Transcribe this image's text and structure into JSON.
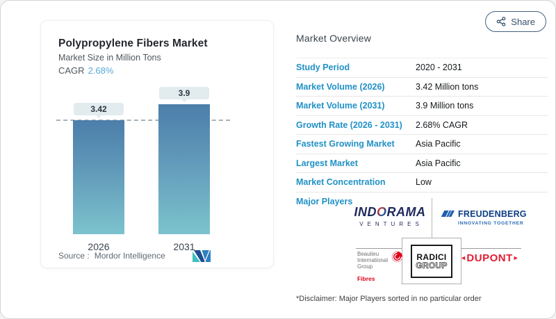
{
  "share": {
    "label": "Share",
    "icon": "share-nodes-icon"
  },
  "chart_card": {
    "title": "Polypropylene Fibers Market",
    "subtitle": "Market Size in Million Tons",
    "cagr_label": "CAGR",
    "cagr_value": "2.68%",
    "source_label": "Source :",
    "source_value": "Mordor Intelligence",
    "logo": "mordor-intelligence-logo"
  },
  "chart_data": {
    "type": "bar",
    "categories": [
      "2026",
      "2031"
    ],
    "values": [
      3.42,
      3.9
    ],
    "value_labels": [
      "3.42",
      "3.9"
    ],
    "title": "Polypropylene Fibers Market",
    "ylabel": "Market Size in Million Tons",
    "unit": "Million Tons",
    "cagr": "2.68%",
    "ylim": [
      0,
      4.3
    ],
    "grid": false,
    "reference_line_at": 3.42,
    "bar_gradient": [
      "#4C7EAA",
      "#7CC3CD"
    ]
  },
  "overview": {
    "heading": "Market Overview",
    "rows": [
      {
        "label": "Study Period",
        "value": "2020 - 2031"
      },
      {
        "label": "Market Volume (2026)",
        "value": "3.42 Million tons"
      },
      {
        "label": "Market Volume (2031)",
        "value": "3.9 Million tons"
      },
      {
        "label": "Growth Rate (2026 - 2031)",
        "value": "2.68% CAGR"
      },
      {
        "label": "Fastest Growing Market",
        "value": "Asia Pacific"
      },
      {
        "label": "Largest Market",
        "value": "Asia Pacific"
      },
      {
        "label": "Market Concentration",
        "value": "Low"
      }
    ],
    "major_players_label": "Major Players",
    "disclaimer": "*Disclaimer: Major Players sorted in no particular order"
  },
  "players": {
    "indorama": {
      "part1": "IND",
      "o": "O",
      "part2": "RAMA",
      "sub": "VENTURES"
    },
    "freudenberg": {
      "name": "FREUDENBERG",
      "tagline": "INNOVATING TOGETHER",
      "icon": "freudenberg-flag-icon"
    },
    "beaulieu": {
      "line1": "Beaulieu",
      "line2": "International",
      "line3": "Group",
      "sub": "Fibres",
      "icon": "beaulieu-swirl-icon"
    },
    "radici": {
      "line1": "RADICI",
      "line2": "GROUP"
    },
    "dupont": {
      "name": "DUPONT",
      "left_chevron": "◄",
      "right_chevron": "►"
    }
  },
  "colors": {
    "accent_blue": "#2191C6",
    "cagr_blue": "#5BA8D6",
    "bar_top": "#4C7EAA",
    "bar_bottom": "#7CC3CD",
    "dupont_red": "#E41D32",
    "beaulieu_red": "#E2001A",
    "indorama_navy": "#1F2A5C",
    "freudenberg_navy": "#0D3D85"
  }
}
